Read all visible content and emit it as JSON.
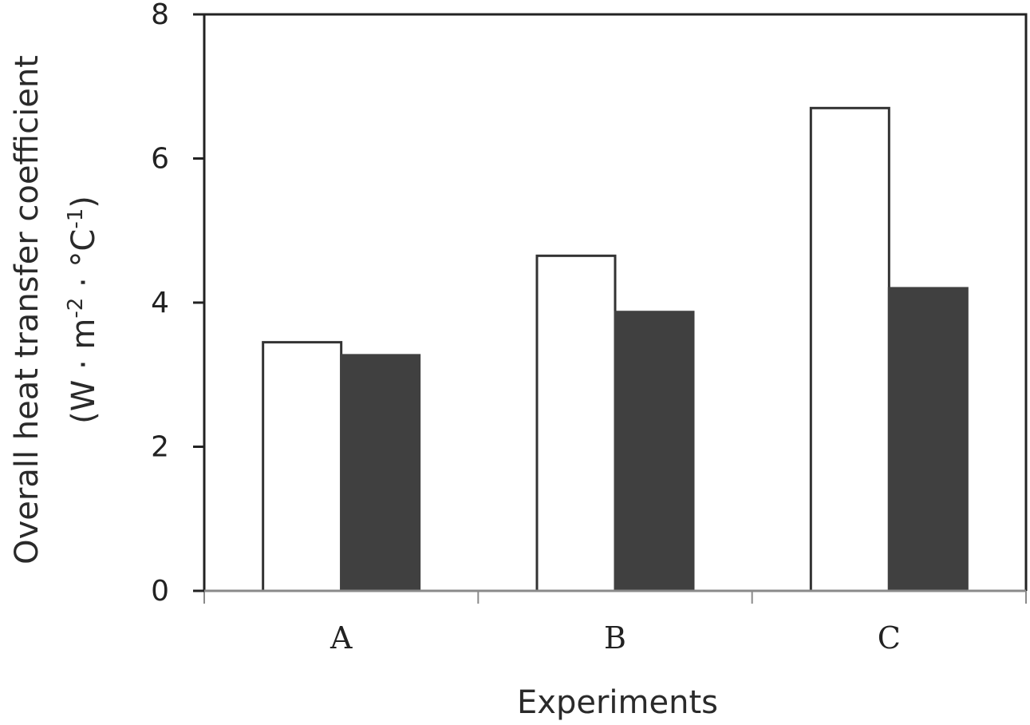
{
  "chart_data": {
    "type": "bar",
    "title": "",
    "xlabel": "Experiments",
    "ylabel_line1": "Overall heat transfer coefficient",
    "ylabel_line2": {
      "open": "(W · m",
      "sup1": "-2",
      "mid": " · °C",
      "sup2": "-1",
      "close": ")"
    },
    "categories": [
      "A",
      "B",
      "C"
    ],
    "series": [
      {
        "name": "series-1",
        "fill": "#ffffff",
        "stroke": "#333333",
        "values": [
          3.45,
          4.65,
          6.7
        ]
      },
      {
        "name": "series-2",
        "fill": "#404040",
        "stroke": "#404040",
        "values": [
          3.27,
          3.87,
          4.2
        ]
      }
    ],
    "ylim": [
      0,
      8
    ],
    "yticks": [
      0,
      2,
      4,
      6,
      8
    ],
    "grid": false,
    "legend": "none"
  }
}
